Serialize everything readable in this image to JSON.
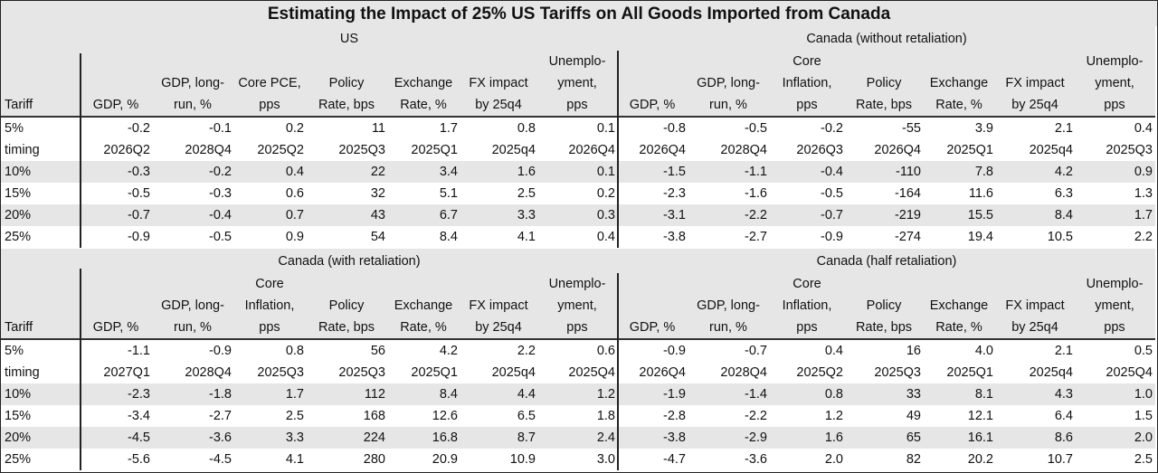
{
  "title": "Estimating the Impact of 25% US Tariffs on All Goods Imported from Canada",
  "tariff_label": "Tariff",
  "blocks": [
    {
      "panels": [
        {
          "name": "US",
          "headers": [
            [
              "",
              "",
              "GDP, %"
            ],
            [
              "",
              "GDP, long-",
              "run, %"
            ],
            [
              "",
              "Core PCE,",
              "pps"
            ],
            [
              "",
              "Policy",
              "Rate, bps"
            ],
            [
              "",
              "Exchange",
              "Rate, %"
            ],
            [
              "",
              "FX impact",
              "by 25q4"
            ],
            [
              "Unemplo-",
              "yment,",
              "pps"
            ]
          ],
          "rows": [
            [
              "-0.2",
              "-0.1",
              "0.2",
              "11",
              "1.7",
              "0.8",
              "0.1"
            ],
            [
              "2026Q2",
              "2028Q4",
              "2025Q2",
              "2025Q3",
              "2025Q1",
              "2025q4",
              "2026Q4"
            ],
            [
              "-0.3",
              "-0.2",
              "0.4",
              "22",
              "3.4",
              "1.6",
              "0.1"
            ],
            [
              "-0.5",
              "-0.3",
              "0.6",
              "32",
              "5.1",
              "2.5",
              "0.2"
            ],
            [
              "-0.7",
              "-0.4",
              "0.7",
              "43",
              "6.7",
              "3.3",
              "0.3"
            ],
            [
              "-0.9",
              "-0.5",
              "0.9",
              "54",
              "8.4",
              "4.1",
              "0.4"
            ]
          ]
        },
        {
          "name": "Canada (without retaliation)",
          "headers": [
            [
              "",
              "",
              "GDP, %"
            ],
            [
              "",
              "GDP, long-",
              "run, %"
            ],
            [
              "Core",
              "Inflation,",
              "pps"
            ],
            [
              "",
              "Policy",
              "Rate, bps"
            ],
            [
              "",
              "Exchange",
              "Rate, %"
            ],
            [
              "",
              "FX impact",
              "by 25q4"
            ],
            [
              "Unemplo-",
              "yment,",
              "pps"
            ]
          ],
          "rows": [
            [
              "-0.8",
              "-0.5",
              "-0.2",
              "-55",
              "3.9",
              "2.1",
              "0.4"
            ],
            [
              "2026Q4",
              "2028Q4",
              "2026Q3",
              "2026Q4",
              "2025Q1",
              "2025q4",
              "2025Q3"
            ],
            [
              "-1.5",
              "-1.1",
              "-0.4",
              "-110",
              "7.8",
              "4.2",
              "0.9"
            ],
            [
              "-2.3",
              "-1.6",
              "-0.5",
              "-164",
              "11.6",
              "6.3",
              "1.3"
            ],
            [
              "-3.1",
              "-2.2",
              "-0.7",
              "-219",
              "15.5",
              "8.4",
              "1.7"
            ],
            [
              "-3.8",
              "-2.7",
              "-0.9",
              "-274",
              "19.4",
              "10.5",
              "2.2"
            ]
          ]
        }
      ]
    },
    {
      "panels": [
        {
          "name": "Canada (with retaliation)",
          "headers": [
            [
              "",
              "",
              "GDP, %"
            ],
            [
              "",
              "GDP, long-",
              "run, %"
            ],
            [
              "Core",
              "Inflation,",
              "pps"
            ],
            [
              "",
              "Policy",
              "Rate, bps"
            ],
            [
              "",
              "Exchange",
              "Rate, %"
            ],
            [
              "",
              "FX impact",
              "by 25q4"
            ],
            [
              "Unemplo-",
              "yment,",
              "pps"
            ]
          ],
          "rows": [
            [
              "-1.1",
              "-0.9",
              "0.8",
              "56",
              "4.2",
              "2.2",
              "0.6"
            ],
            [
              "2027Q1",
              "2028Q4",
              "2025Q3",
              "2025Q3",
              "2025Q1",
              "2025q4",
              "2025Q4"
            ],
            [
              "-2.3",
              "-1.8",
              "1.7",
              "112",
              "8.4",
              "4.4",
              "1.2"
            ],
            [
              "-3.4",
              "-2.7",
              "2.5",
              "168",
              "12.6",
              "6.5",
              "1.8"
            ],
            [
              "-4.5",
              "-3.6",
              "3.3",
              "224",
              "16.8",
              "8.7",
              "2.4"
            ],
            [
              "-5.6",
              "-4.5",
              "4.1",
              "280",
              "20.9",
              "10.9",
              "3.0"
            ]
          ]
        },
        {
          "name": "Canada (half retaliation)",
          "headers": [
            [
              "",
              "",
              "GDP, %"
            ],
            [
              "",
              "GDP, long-",
              "run, %"
            ],
            [
              "Core",
              "Inflation,",
              "pps"
            ],
            [
              "",
              "Policy",
              "Rate, bps"
            ],
            [
              "",
              "Exchange",
              "Rate, %"
            ],
            [
              "",
              "FX impact",
              "by 25q4"
            ],
            [
              "Unemplo-",
              "yment,",
              "pps"
            ]
          ],
          "rows": [
            [
              "-0.9",
              "-0.7",
              "0.4",
              "16",
              "4.0",
              "2.1",
              "0.5"
            ],
            [
              "2026Q4",
              "2028Q4",
              "2025Q2",
              "2025Q3",
              "2025Q1",
              "2025q4",
              "2025Q4"
            ],
            [
              "-1.9",
              "-1.4",
              "0.8",
              "33",
              "8.1",
              "4.3",
              "1.0"
            ],
            [
              "-2.8",
              "-2.2",
              "1.2",
              "49",
              "12.1",
              "6.4",
              "1.5"
            ],
            [
              "-3.8",
              "-2.9",
              "1.6",
              "65",
              "16.1",
              "8.6",
              "2.0"
            ],
            [
              "-4.7",
              "-3.6",
              "2.0",
              "82",
              "20.2",
              "10.7",
              "2.5"
            ]
          ]
        }
      ]
    }
  ],
  "row_labels": [
    "5%",
    "timing",
    "10%",
    "15%",
    "20%",
    "25%"
  ],
  "colors": {
    "header_bg": "#e6e6e6",
    "stripe_bg": "#e6e6e6",
    "rule": "#222222"
  }
}
